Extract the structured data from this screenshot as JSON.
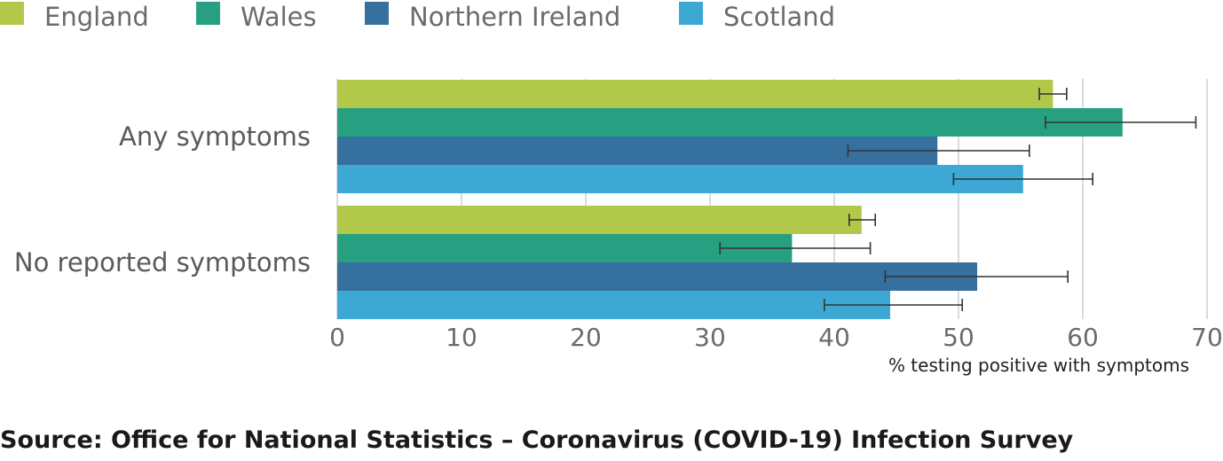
{
  "chart_data": {
    "type": "bar",
    "orientation": "horizontal",
    "categories": [
      "Any symptoms",
      "No reported symptoms"
    ],
    "series": [
      {
        "name": "England",
        "color": "#b2c84a",
        "values": [
          57.6,
          42.2
        ],
        "ci_low": [
          56.5,
          41.2
        ],
        "ci_high": [
          58.7,
          43.3
        ]
      },
      {
        "name": "Wales",
        "color": "#26a080",
        "values": [
          63.2,
          36.6
        ],
        "ci_low": [
          57.0,
          30.8
        ],
        "ci_high": [
          69.1,
          42.9
        ]
      },
      {
        "name": "Northern Ireland",
        "color": "#35709e",
        "values": [
          48.3,
          51.5
        ],
        "ci_low": [
          41.1,
          44.1
        ],
        "ci_high": [
          55.7,
          58.8
        ]
      },
      {
        "name": "Scotland",
        "color": "#3da8d4",
        "values": [
          55.2,
          44.5
        ],
        "ci_low": [
          49.6,
          39.2
        ],
        "ci_high": [
          60.8,
          50.3
        ]
      }
    ],
    "xlabel": "% testing positive with symptoms",
    "ylabel": "",
    "xlim": [
      0,
      70
    ],
    "xticks": [
      0,
      10,
      20,
      30,
      40,
      50,
      60,
      70
    ],
    "grid": true,
    "legend_position": "top"
  },
  "source": "Source: Office for National Statistics – Coronavirus (COVID-19) Infection Survey"
}
